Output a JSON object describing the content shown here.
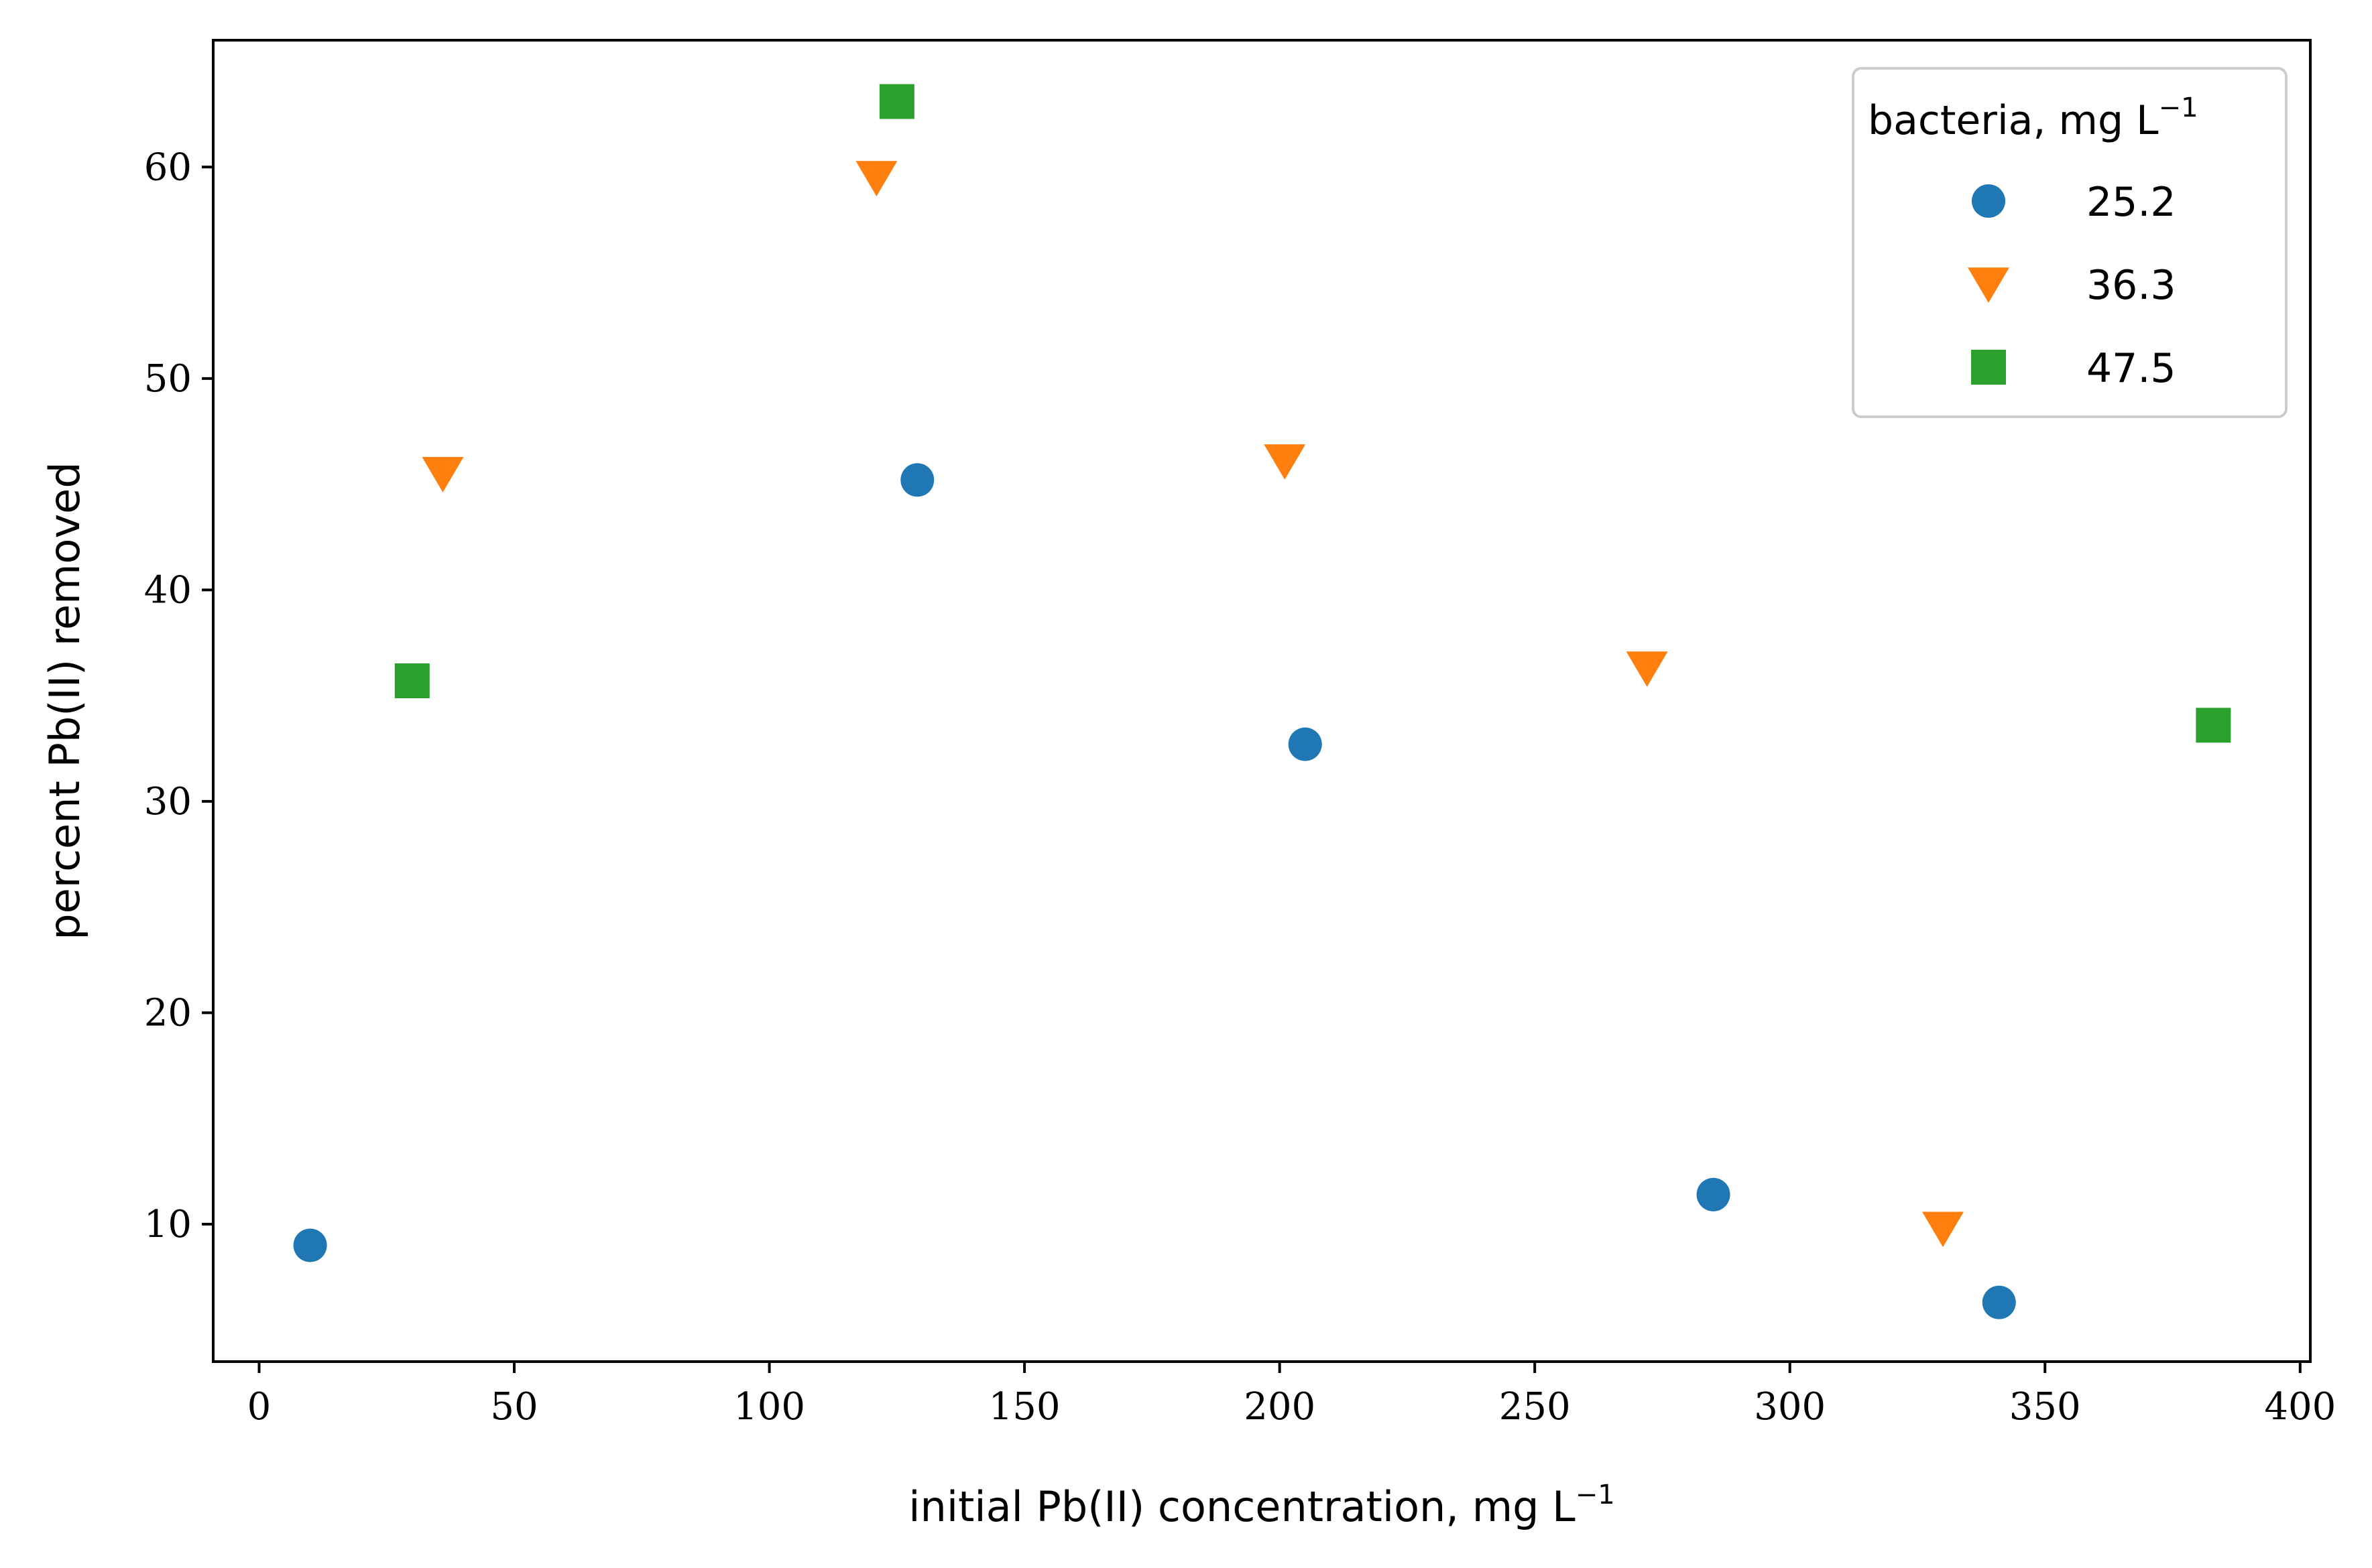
{
  "chart_data": {
    "type": "scatter",
    "xlabel": "initial Pb(II) concentration, mg L",
    "xlabel_sup": "−1",
    "ylabel": "percent Pb(II) removed",
    "xlim": [
      -9,
      402
    ],
    "ylim": [
      3.5,
      66
    ],
    "xticks": [
      0,
      50,
      100,
      150,
      200,
      250,
      300,
      350,
      400
    ],
    "yticks": [
      10,
      20,
      30,
      40,
      50,
      60
    ],
    "legend": {
      "title": "bacteria, mg L",
      "title_sup": "−1",
      "placement": "top-right"
    },
    "series": [
      {
        "name": "25.2",
        "marker": "circle",
        "color": "#1f77b4",
        "points": [
          [
            10,
            9.0
          ],
          [
            129,
            45.2
          ],
          [
            205,
            32.7
          ],
          [
            285,
            11.4
          ],
          [
            341,
            6.3
          ]
        ]
      },
      {
        "name": "36.3",
        "marker": "triangle-down",
        "color": "#ff7f0e",
        "points": [
          [
            36,
            45.5
          ],
          [
            121,
            59.5
          ],
          [
            201,
            46.1
          ],
          [
            272,
            36.3
          ],
          [
            330,
            9.8
          ]
        ]
      },
      {
        "name": "47.5",
        "marker": "square",
        "color": "#2ca02c",
        "points": [
          [
            30,
            35.7
          ],
          [
            125,
            63.1
          ],
          [
            383,
            33.6
          ]
        ]
      }
    ]
  }
}
